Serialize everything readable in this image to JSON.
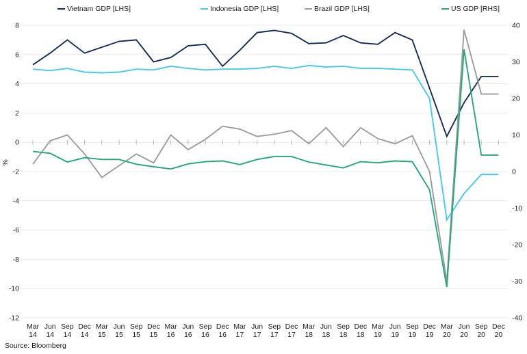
{
  "source": "Source: Bloomberg",
  "chart_data": {
    "type": "line",
    "title": "",
    "ylabel_left": "%",
    "grid": true,
    "legend_position": "top",
    "left_axis": {
      "min": -12,
      "max": 8,
      "step": 2,
      "ticks": [
        8,
        6,
        4,
        2,
        0,
        -2,
        -4,
        -6,
        -8,
        -10,
        -12
      ],
      "label": "%"
    },
    "right_axis": {
      "min": -40,
      "max": 40,
      "step": 10,
      "ticks": [
        40,
        30,
        20,
        10,
        0,
        -10,
        -20,
        -30,
        -40
      ]
    },
    "categories": [
      "Mar 14",
      "Jun 14",
      "Sep 14",
      "Dec 14",
      "Mar 15",
      "Jun 15",
      "Sep 15",
      "Dec 15",
      "Mar 16",
      "Jun 16",
      "Sep 16",
      "Dec 16",
      "Mar 17",
      "Jun 17",
      "Sep 17",
      "Dec 17",
      "Mar 18",
      "Jun 18",
      "Sep 18",
      "Dec 18",
      "Mar 19",
      "Jun 19",
      "Sep 19",
      "Dec 19",
      "Mar 20",
      "Jun 20",
      "Sep 20",
      "Dec 20"
    ],
    "series": [
      {
        "name": "Vietnam GDP [LHS]",
        "axis": "left",
        "color": "#132c56",
        "values": [
          5.3,
          6.1,
          7.0,
          6.1,
          6.5,
          6.9,
          7.0,
          5.5,
          5.8,
          6.6,
          6.7,
          5.2,
          6.3,
          7.5,
          7.65,
          7.45,
          6.75,
          6.8,
          7.3,
          6.8,
          6.7,
          7.5,
          7.0,
          3.7,
          0.4,
          2.7,
          4.5,
          4.5
        ]
      },
      {
        "name": "Indonesia GDP [LHS]",
        "axis": "left",
        "color": "#47c8f1",
        "values": [
          5.0,
          4.9,
          5.05,
          4.8,
          4.75,
          4.8,
          5.0,
          4.95,
          5.2,
          5.05,
          4.95,
          5.0,
          5.0,
          5.05,
          5.2,
          5.05,
          5.25,
          5.15,
          5.2,
          5.05,
          5.05,
          5.0,
          4.95,
          3.0,
          -5.3,
          -3.5,
          -2.2,
          -2.2
        ]
      },
      {
        "name": "Brazil GDP [LHS]",
        "axis": "left",
        "color": "#9c9c9c",
        "values": [
          -1.5,
          0.1,
          0.5,
          -0.8,
          -2.4,
          -1.6,
          -0.8,
          -1.4,
          0.5,
          -0.5,
          0.2,
          1.1,
          0.9,
          0.4,
          0.55,
          0.8,
          -0.1,
          1.0,
          -0.3,
          1.0,
          0.25,
          -0.1,
          0.45,
          -2.0,
          -9.5,
          7.7,
          3.3,
          3.3
        ]
      },
      {
        "name": "US GDP [RHS]",
        "axis": "right",
        "color": "#23a77d",
        "values": [
          5.5,
          5.0,
          2.6,
          3.8,
          3.3,
          3.3,
          2.0,
          1.3,
          0.7,
          2.1,
          2.7,
          2.9,
          1.9,
          3.3,
          4.1,
          4.1,
          2.6,
          1.8,
          1.0,
          2.7,
          2.4,
          2.9,
          2.7,
          -5.0,
          -31.6,
          33.4,
          4.5,
          4.5
        ]
      }
    ],
    "legend_x": [
      84,
      293,
      445,
      645
    ],
    "gridline_color": "#e9e9e9",
    "tick_color": "#b9b9b9",
    "text_color": "#1a1a1a"
  }
}
